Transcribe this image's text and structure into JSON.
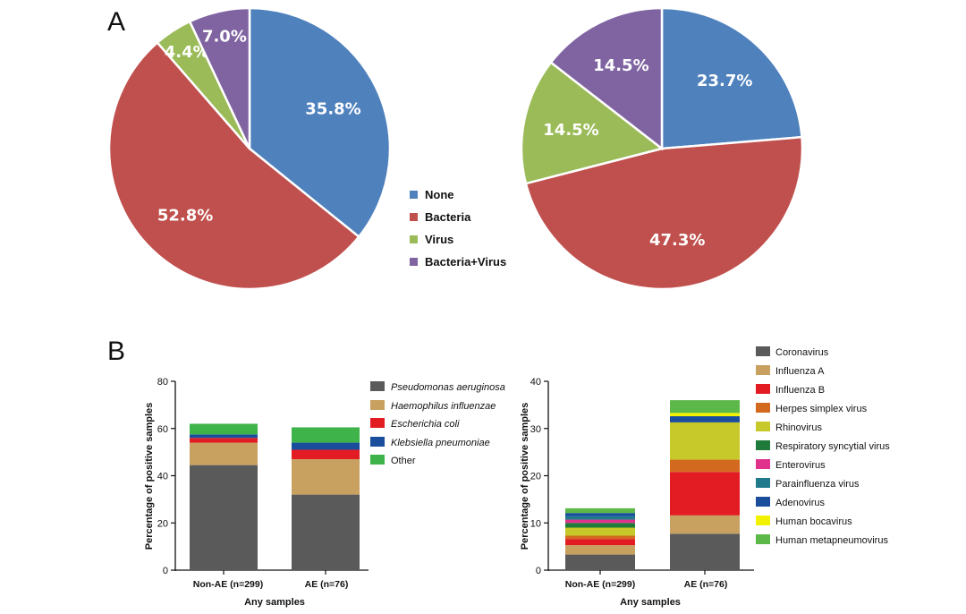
{
  "panels": {
    "a_label": "A",
    "b_label": "B"
  },
  "colors": {
    "none": "#4F81BD",
    "bacteria": "#C0504D",
    "virus": "#9BBB59",
    "bacteria_virus": "#8064A2",
    "pseudomonas": "#5A5A5A",
    "haemophilus": "#C8A060",
    "ecoli": "#E31B23",
    "klebsiella": "#1A4E9C",
    "other": "#3DB34A",
    "coronavirus": "#5A5A5A",
    "influenza_a": "#C8A060",
    "influenza_b": "#E31B23",
    "herpes": "#D2691E",
    "rhinovirus": "#C7C82A",
    "rsv": "#1E7B3A",
    "enterovirus": "#E0318C",
    "parainfluenza": "#1F7A8C",
    "adenovirus": "#1A4E9C",
    "bocavirus": "#F2F200",
    "metapneumovirus": "#5CB848"
  },
  "chart_data": [
    {
      "type": "pie",
      "categories": [
        "None",
        "Bacteria",
        "Virus",
        "Bacteria+Virus"
      ],
      "values": [
        35.8,
        52.8,
        4.4,
        7.0
      ],
      "labels": [
        "35.8%",
        "52.8%",
        "4.4%",
        "7.0%"
      ]
    },
    {
      "type": "pie",
      "categories": [
        "None",
        "Bacteria",
        "Virus",
        "Bacteria+Virus"
      ],
      "values": [
        23.7,
        47.3,
        14.5,
        14.5
      ],
      "labels": [
        "23.7%",
        "47.3%",
        "14.5%",
        "14.5%"
      ]
    },
    {
      "type": "bar",
      "stacked": true,
      "categories": [
        "Non-AE (n=299)",
        "AE (n=76)"
      ],
      "xlabel": "Any samples",
      "ylabel": "Percentage of positive samples",
      "ylim": [
        0,
        80
      ],
      "yticks": [
        "0",
        "20",
        "40",
        "60",
        "80"
      ],
      "series": [
        {
          "name": "Pseudomonas aeruginosa",
          "italic": true,
          "values": [
            44.5,
            32
          ]
        },
        {
          "name": "Haemophilus influenzae",
          "italic": true,
          "values": [
            9.5,
            15
          ]
        },
        {
          "name": "Escherichia coli",
          "italic": true,
          "values": [
            2,
            4
          ]
        },
        {
          "name": "Klebsiella pneumoniae",
          "italic": true,
          "values": [
            1.5,
            3
          ]
        },
        {
          "name": "Other",
          "italic": false,
          "values": [
            4.5,
            6.5
          ]
        }
      ]
    },
    {
      "type": "bar",
      "stacked": true,
      "categories": [
        "Non-AE (n=299)",
        "AE (n=76)"
      ],
      "xlabel": "Any samples",
      "ylabel": "Percentage of positive samples",
      "ylim": [
        0,
        40
      ],
      "yticks": [
        "0",
        "10",
        "20",
        "30",
        "40"
      ],
      "series": [
        {
          "name": "Coronavirus",
          "values": [
            3.3,
            7.7
          ]
        },
        {
          "name": "Influenza A",
          "values": [
            2.0,
            3.9
          ]
        },
        {
          "name": "Influenza B",
          "values": [
            1.3,
            9.2
          ]
        },
        {
          "name": "Herpes simplex virus",
          "values": [
            0.7,
            2.6
          ]
        },
        {
          "name": "Rhinovirus",
          "values": [
            1.7,
            7.9
          ]
        },
        {
          "name": "Respiratory syncytial virus",
          "values": [
            1.0,
            0
          ]
        },
        {
          "name": "Enterovirus",
          "values": [
            0.7,
            0
          ]
        },
        {
          "name": "Parainfluenza virus",
          "values": [
            0.7,
            0
          ]
        },
        {
          "name": "Adenovirus",
          "values": [
            0.7,
            1.3
          ]
        },
        {
          "name": "Human bocavirus",
          "values": [
            0,
            0.7
          ]
        },
        {
          "name": "Human metapneumovirus",
          "values": [
            1.0,
            2.7
          ]
        }
      ]
    }
  ]
}
